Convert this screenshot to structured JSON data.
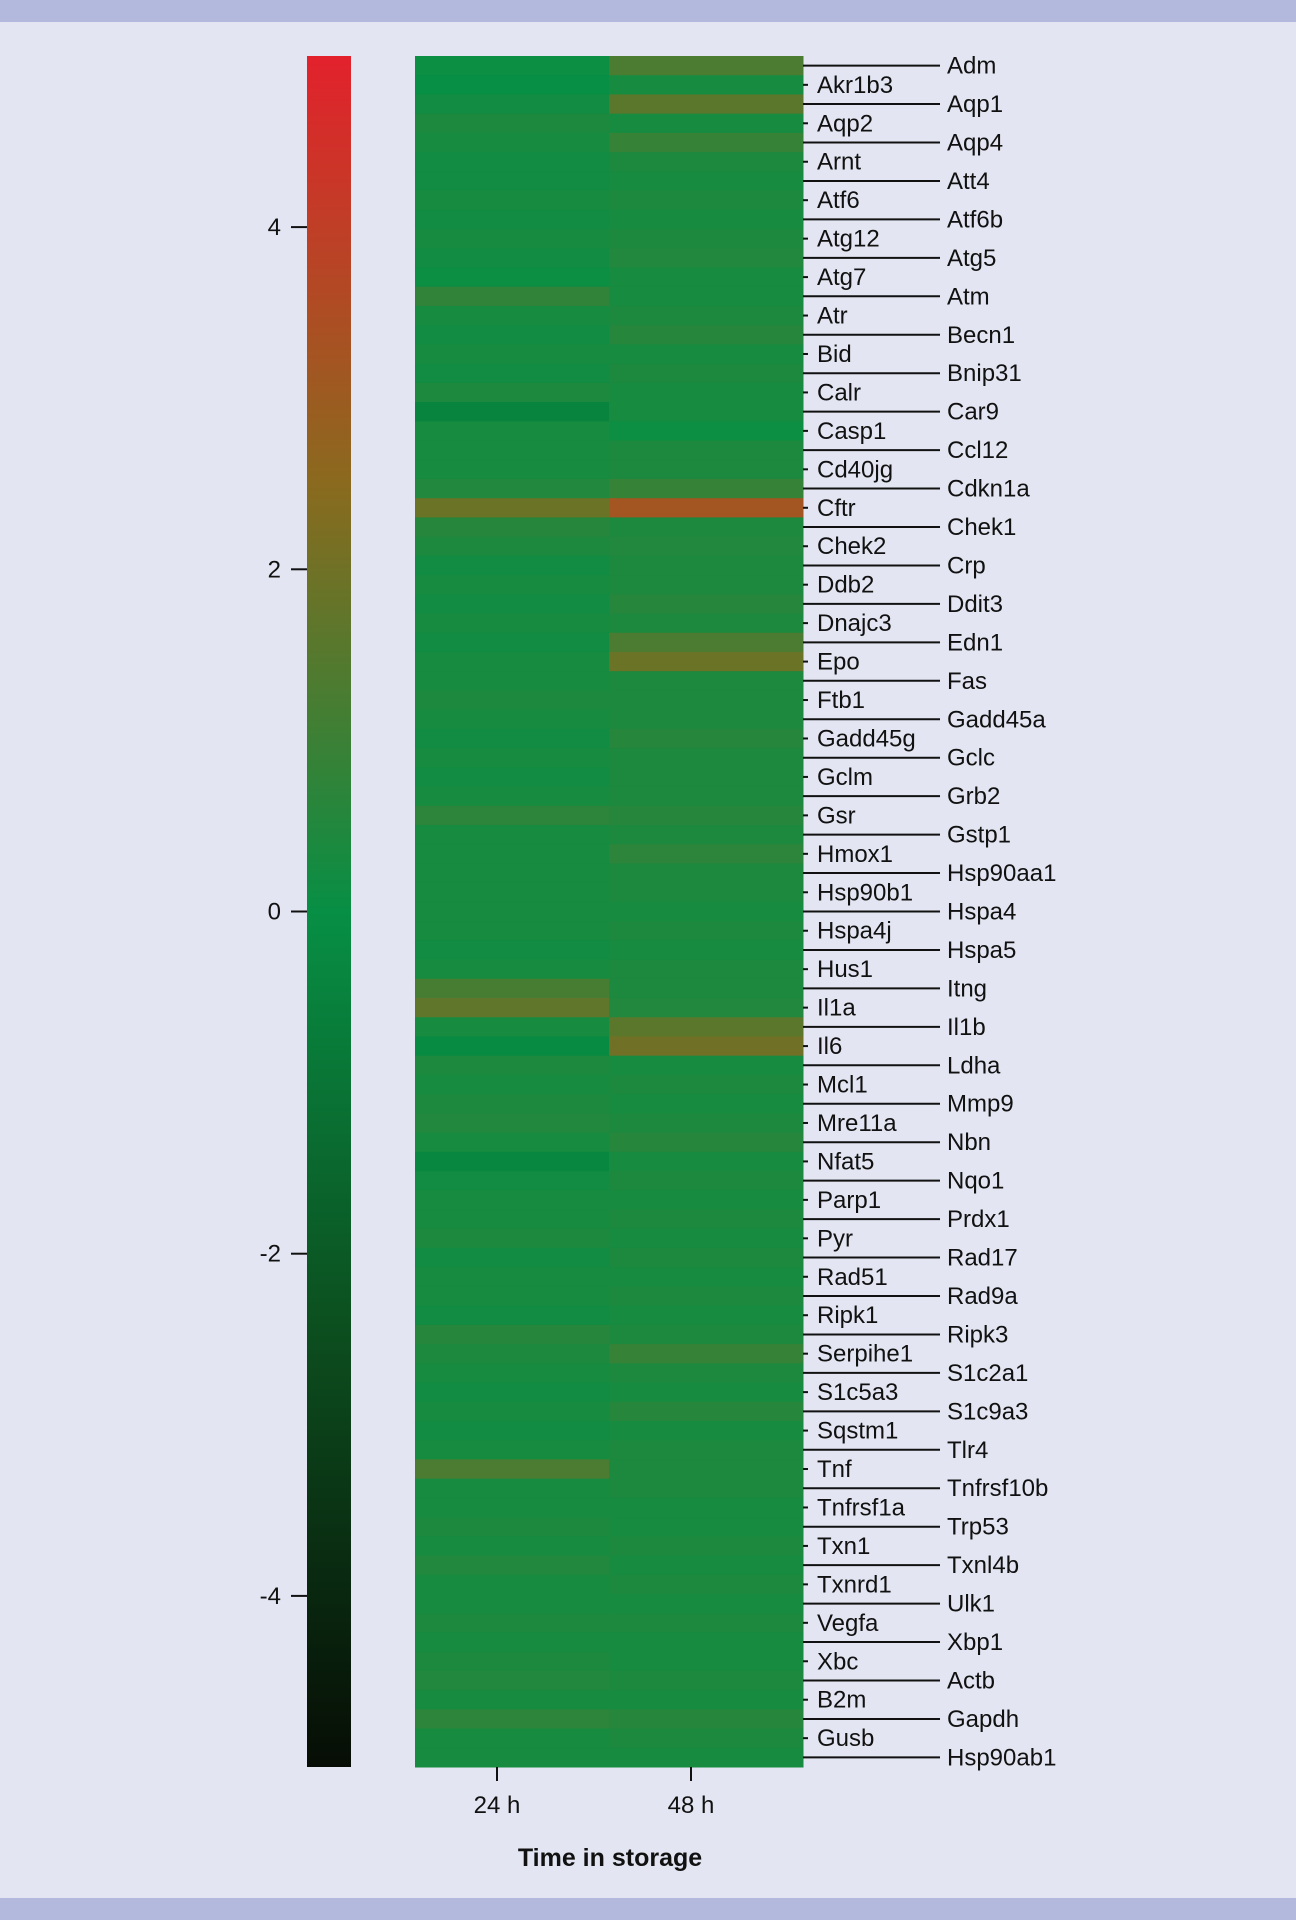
{
  "chart_data": {
    "type": "heatmap",
    "xlabel": "Time in storage",
    "columns": [
      "24 h",
      "48 h"
    ],
    "colorbar": {
      "range": [
        -5,
        5
      ],
      "ticks": [
        4,
        2,
        0,
        -2,
        -4
      ],
      "tick_labels": [
        "4",
        "2",
        "0",
        "-2",
        "-4"
      ],
      "colors": {
        "low": "#070d05",
        "mid": "#078f45",
        "high": "#e3212c"
      }
    },
    "rows": [
      "Adm",
      "Akr1b3",
      "Aqp1",
      "Aqp2",
      "Aqp4",
      "Arnt",
      "Att4",
      "Atf6",
      "Atf6b",
      "Atg12",
      "Atg5",
      "Atg7",
      "Atm",
      "Atr",
      "Becn1",
      "Bid",
      "Bnip31",
      "Calr",
      "Car9",
      "Casp1",
      "Ccl12",
      "Cd40jg",
      "Cdkn1a",
      "Cftr",
      "Chek1",
      "Chek2",
      "Crp",
      "Ddb2",
      "Ddit3",
      "Dnajc3",
      "Edn1",
      "Epo",
      "Fas",
      "Ftb1",
      "Gadd45a",
      "Gadd45g",
      "Gclc",
      "Gclm",
      "Grb2",
      "Gsr",
      "Gstp1",
      "Hmox1",
      "Hsp90aa1",
      "Hsp90b1",
      "Hspa4",
      "Hspa4j",
      "Hspa5",
      "Hus1",
      "Itng",
      "Il1a",
      "Il1b",
      "Il6",
      "Ldha",
      "Mcl1",
      "Mmp9",
      "Mre11a",
      "Nbn",
      "Nfat5",
      "Nqo1",
      "Parp1",
      "Prdx1",
      "Pyr",
      "Rad17",
      "Rad51",
      "Rad9a",
      "Ripk1",
      "Ripk3",
      "Serpihe1",
      "S1c2a1",
      "S1c5a3",
      "S1c9a3",
      "Sqstm1",
      "Tlr4",
      "Tnf",
      "Tnfrsf10b",
      "Tnfrsf1a",
      "Trp53",
      "Txn1",
      "Txnl4b",
      "Txnrd1",
      "Ulk1",
      "Vegfa",
      "Xbp1",
      "Xbc",
      "Actb",
      "B2m",
      "Gapdh",
      "Gusb",
      "Hsp90ab1"
    ],
    "values": [
      [
        0.1,
        1.3
      ],
      [
        0.0,
        0.3
      ],
      [
        0.2,
        1.6
      ],
      [
        0.4,
        0.3
      ],
      [
        0.3,
        0.9
      ],
      [
        0.2,
        0.4
      ],
      [
        0.2,
        0.3
      ],
      [
        0.3,
        0.4
      ],
      [
        0.2,
        0.3
      ],
      [
        0.3,
        0.4
      ],
      [
        0.2,
        0.5
      ],
      [
        0.1,
        0.3
      ],
      [
        0.8,
        0.3
      ],
      [
        0.3,
        0.4
      ],
      [
        0.2,
        0.6
      ],
      [
        0.3,
        0.3
      ],
      [
        0.2,
        0.4
      ],
      [
        0.4,
        0.3
      ],
      [
        -0.4,
        0.3
      ],
      [
        0.3,
        0.1
      ],
      [
        0.3,
        0.4
      ],
      [
        0.3,
        0.4
      ],
      [
        0.5,
        0.9
      ],
      [
        1.9,
        3.2
      ],
      [
        0.6,
        0.4
      ],
      [
        0.4,
        0.5
      ],
      [
        0.2,
        0.4
      ],
      [
        0.3,
        0.4
      ],
      [
        0.2,
        0.6
      ],
      [
        0.3,
        0.4
      ],
      [
        0.2,
        1.3
      ],
      [
        0.3,
        1.9
      ],
      [
        0.3,
        0.4
      ],
      [
        0.4,
        0.4
      ],
      [
        0.3,
        0.4
      ],
      [
        0.2,
        0.6
      ],
      [
        0.3,
        0.4
      ],
      [
        0.2,
        0.4
      ],
      [
        0.3,
        0.4
      ],
      [
        0.7,
        0.6
      ],
      [
        0.3,
        0.4
      ],
      [
        0.3,
        0.7
      ],
      [
        0.3,
        0.4
      ],
      [
        0.3,
        0.4
      ],
      [
        0.3,
        0.3
      ],
      [
        0.3,
        0.4
      ],
      [
        0.2,
        0.3
      ],
      [
        0.3,
        0.4
      ],
      [
        1.2,
        0.4
      ],
      [
        1.7,
        0.5
      ],
      [
        0.3,
        1.6
      ],
      [
        -0.2,
        2.0
      ],
      [
        0.4,
        0.3
      ],
      [
        0.3,
        0.4
      ],
      [
        0.4,
        0.3
      ],
      [
        0.5,
        0.4
      ],
      [
        0.3,
        0.6
      ],
      [
        -0.3,
        0.3
      ],
      [
        0.2,
        0.4
      ],
      [
        0.3,
        0.3
      ],
      [
        0.3,
        0.4
      ],
      [
        0.4,
        0.3
      ],
      [
        0.2,
        0.4
      ],
      [
        0.3,
        0.3
      ],
      [
        0.3,
        0.4
      ],
      [
        0.2,
        0.3
      ],
      [
        0.6,
        0.4
      ],
      [
        0.4,
        0.9
      ],
      [
        0.3,
        0.4
      ],
      [
        0.2,
        0.3
      ],
      [
        0.3,
        0.6
      ],
      [
        0.2,
        0.3
      ],
      [
        0.3,
        0.4
      ],
      [
        1.3,
        0.4
      ],
      [
        0.3,
        0.4
      ],
      [
        0.3,
        0.3
      ],
      [
        0.4,
        0.3
      ],
      [
        0.3,
        0.4
      ],
      [
        0.5,
        0.3
      ],
      [
        0.3,
        0.4
      ],
      [
        0.3,
        0.3
      ],
      [
        0.4,
        0.4
      ],
      [
        0.3,
        0.3
      ],
      [
        0.4,
        0.3
      ],
      [
        0.5,
        0.4
      ],
      [
        0.3,
        0.3
      ],
      [
        0.7,
        0.6
      ],
      [
        0.3,
        0.4
      ],
      [
        0.3,
        0.3
      ]
    ]
  }
}
